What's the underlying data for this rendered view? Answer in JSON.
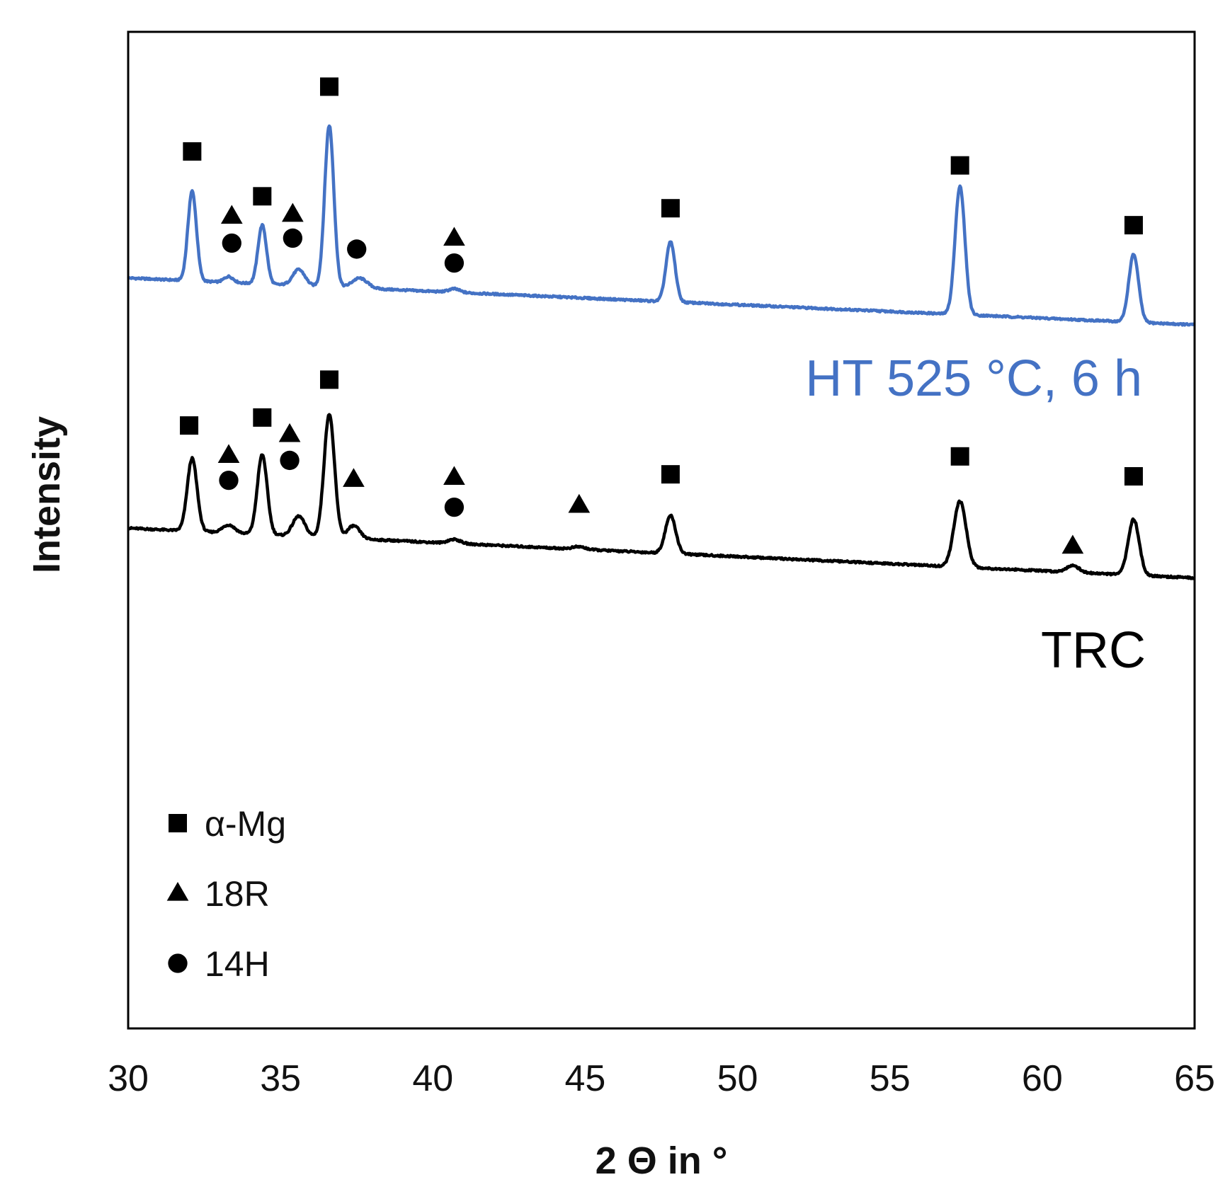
{
  "chart_data": {
    "type": "line",
    "title": "",
    "xlabel": "2 Θ in °",
    "ylabel": "Intensity",
    "xlim": [
      30,
      65
    ],
    "ylim": [
      0,
      100
    ],
    "xticks": [
      30,
      35,
      40,
      45,
      50,
      55,
      60,
      65
    ],
    "grid": false,
    "legend_position": "bottom-left",
    "legend": [
      {
        "marker": "square",
        "label": "α-Mg"
      },
      {
        "marker": "triangle",
        "label": "18R"
      },
      {
        "marker": "circle",
        "label": "14H"
      }
    ],
    "series": [
      {
        "name": "HT 525 °C, 6 h",
        "color": "#4472C4",
        "baseline_start": 75.3,
        "baseline_end": 70.6,
        "peaks": [
          {
            "x": 32.1,
            "h": 9.0,
            "w": 0.14
          },
          {
            "x": 33.3,
            "h": 0.6,
            "w": 0.15
          },
          {
            "x": 34.4,
            "h": 5.9,
            "w": 0.14
          },
          {
            "x": 35.6,
            "h": 1.6,
            "w": 0.2
          },
          {
            "x": 36.6,
            "h": 16.2,
            "w": 0.15
          },
          {
            "x": 37.6,
            "h": 1.0,
            "w": 0.25
          },
          {
            "x": 40.7,
            "h": 0.35,
            "w": 0.18
          },
          {
            "x": 47.8,
            "h": 6.0,
            "w": 0.15
          },
          {
            "x": 57.3,
            "h": 12.9,
            "w": 0.16
          },
          {
            "x": 63.0,
            "h": 6.8,
            "w": 0.16
          }
        ],
        "markers": [
          {
            "x": 32.1,
            "y": 88.0,
            "symbol": "square"
          },
          {
            "x": 33.4,
            "y": 81.5,
            "symbol": "triangle"
          },
          {
            "x": 33.4,
            "y": 78.8,
            "symbol": "circle"
          },
          {
            "x": 34.4,
            "y": 83.5,
            "symbol": "square"
          },
          {
            "x": 35.4,
            "y": 81.7,
            "symbol": "triangle"
          },
          {
            "x": 35.4,
            "y": 79.3,
            "symbol": "circle"
          },
          {
            "x": 36.6,
            "y": 94.5,
            "symbol": "square"
          },
          {
            "x": 37.5,
            "y": 78.2,
            "symbol": "circle"
          },
          {
            "x": 40.7,
            "y": 79.3,
            "symbol": "triangle"
          },
          {
            "x": 40.7,
            "y": 76.8,
            "symbol": "circle"
          },
          {
            "x": 47.8,
            "y": 82.3,
            "symbol": "square"
          },
          {
            "x": 57.3,
            "y": 86.6,
            "symbol": "square"
          },
          {
            "x": 63.0,
            "y": 80.6,
            "symbol": "square"
          }
        ]
      },
      {
        "name": "TRC",
        "color": "#000000",
        "baseline_start": 50.2,
        "baseline_end": 45.2,
        "peaks": [
          {
            "x": 32.1,
            "h": 7.3,
            "w": 0.16
          },
          {
            "x": 33.3,
            "h": 0.8,
            "w": 0.2
          },
          {
            "x": 34.4,
            "h": 8.0,
            "w": 0.16
          },
          {
            "x": 35.6,
            "h": 2.0,
            "w": 0.2
          },
          {
            "x": 36.6,
            "h": 12.4,
            "w": 0.17
          },
          {
            "x": 37.4,
            "h": 1.3,
            "w": 0.2
          },
          {
            "x": 40.7,
            "h": 0.4,
            "w": 0.2
          },
          {
            "x": 44.8,
            "h": 0.25,
            "w": 0.2
          },
          {
            "x": 47.8,
            "h": 3.8,
            "w": 0.17
          },
          {
            "x": 57.3,
            "h": 6.6,
            "w": 0.2
          },
          {
            "x": 61.0,
            "h": 0.7,
            "w": 0.2
          },
          {
            "x": 63.0,
            "h": 5.6,
            "w": 0.18
          }
        ],
        "markers": [
          {
            "x": 32.0,
            "y": 60.5,
            "symbol": "square"
          },
          {
            "x": 34.4,
            "y": 61.3,
            "symbol": "square"
          },
          {
            "x": 36.6,
            "y": 65.1,
            "symbol": "square"
          },
          {
            "x": 33.3,
            "y": 57.5,
            "symbol": "triangle"
          },
          {
            "x": 33.3,
            "y": 55.0,
            "symbol": "circle"
          },
          {
            "x": 35.3,
            "y": 59.6,
            "symbol": "triangle"
          },
          {
            "x": 35.3,
            "y": 57.0,
            "symbol": "circle"
          },
          {
            "x": 37.4,
            "y": 55.1,
            "symbol": "triangle"
          },
          {
            "x": 40.7,
            "y": 55.3,
            "symbol": "triangle"
          },
          {
            "x": 40.7,
            "y": 52.3,
            "symbol": "circle"
          },
          {
            "x": 44.8,
            "y": 52.5,
            "symbol": "triangle"
          },
          {
            "x": 47.8,
            "y": 55.6,
            "symbol": "square"
          },
          {
            "x": 57.3,
            "y": 57.4,
            "symbol": "square"
          },
          {
            "x": 61.0,
            "y": 48.4,
            "symbol": "triangle"
          },
          {
            "x": 63.0,
            "y": 55.4,
            "symbol": "square"
          }
        ]
      }
    ]
  }
}
